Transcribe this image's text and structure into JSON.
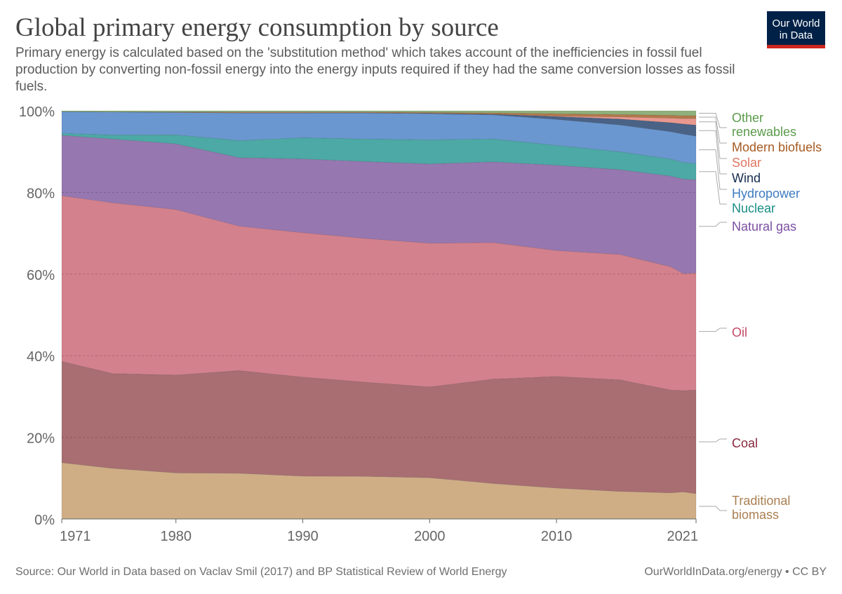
{
  "header": {
    "title": "Global primary energy consumption by source",
    "subtitle": "Primary energy is calculated based on the 'substitution method' which takes account of the inefficiencies in fossil fuel production by converting non-fossil energy into the energy inputs required if they had the same conversion losses as fossil fuels."
  },
  "logo": {
    "line1": "Our World",
    "line2": "in Data",
    "bg_color": "#002147",
    "accent_color": "#ce261e"
  },
  "footer": {
    "source": "Source: Our World in Data based on Vaclav Smil (2017) and BP Statistical Review of World Energy",
    "url": "OurWorldInData.org/energy • CC BY"
  },
  "chart_data": {
    "type": "area",
    "stacked": true,
    "relative": true,
    "x": [
      1971,
      1975,
      1980,
      1985,
      1990,
      1995,
      2000,
      2005,
      2010,
      2015,
      2019,
      2020,
      2021
    ],
    "x_ticks": [
      "1971",
      "1980",
      "1990",
      "2000",
      "2010",
      "2021"
    ],
    "y_ticks": [
      "0%",
      "20%",
      "40%",
      "60%",
      "80%",
      "100%"
    ],
    "ylim": [
      0,
      100
    ],
    "grid": true,
    "legend_placement": "right",
    "series": [
      {
        "name": "Traditional biomass",
        "color": "#cfae86",
        "label_color": "#a97f52",
        "values": [
          13.8,
          12.4,
          11.3,
          11.2,
          10.5,
          10.4,
          10.1,
          8.7,
          7.6,
          6.8,
          6.4,
          6.6,
          6.2
        ]
      },
      {
        "name": "Coal",
        "color": "#a86e72",
        "label_color": "#87283c",
        "values": [
          24.8,
          23.2,
          24.0,
          25.2,
          24.3,
          23.0,
          22.2,
          25.6,
          27.5,
          27.5,
          25.2,
          24.8,
          25.4
        ]
      },
      {
        "name": "Oil",
        "color": "#d3818d",
        "label_color": "#c24a66",
        "values": [
          40.6,
          41.8,
          40.6,
          35.4,
          35.4,
          35.1,
          35.2,
          33.5,
          31.0,
          30.9,
          30.2,
          28.6,
          28.7
        ]
      },
      {
        "name": "Natural gas",
        "color": "#9677b0",
        "label_color": "#7b4fa3",
        "values": [
          14.8,
          15.6,
          16.1,
          16.8,
          18.1,
          18.8,
          19.4,
          19.8,
          21.0,
          20.9,
          22.2,
          23.1,
          22.8
        ]
      },
      {
        "name": "Nuclear",
        "color": "#4ca9a5",
        "label_color": "#1a8e86",
        "values": [
          0.5,
          1.0,
          2.2,
          4.2,
          5.2,
          5.5,
          5.9,
          5.6,
          4.9,
          4.4,
          4.2,
          4.1,
          4.0
        ]
      },
      {
        "name": "Hydropower",
        "color": "#6a97d0",
        "label_color": "#3f7bc0",
        "values": [
          5.3,
          5.6,
          5.5,
          6.8,
          6.1,
          6.4,
          6.4,
          5.9,
          6.4,
          6.6,
          6.7,
          6.9,
          6.7
        ]
      },
      {
        "name": "Wind",
        "color": "#4a6285",
        "label_color": "#162c4e",
        "values": [
          0.0,
          0.0,
          0.0,
          0.0,
          0.0,
          0.0,
          0.1,
          0.2,
          0.7,
          1.5,
          2.2,
          2.5,
          2.7
        ]
      },
      {
        "name": "Solar",
        "color": "#e9988f",
        "label_color": "#e07560",
        "values": [
          0.0,
          0.0,
          0.0,
          0.0,
          0.0,
          0.0,
          0.0,
          0.0,
          0.1,
          0.5,
          1.1,
          1.3,
          1.6
        ]
      },
      {
        "name": "Modern biofuels",
        "color": "#b2794b",
        "label_color": "#a55a22",
        "values": [
          0.0,
          0.0,
          0.1,
          0.2,
          0.2,
          0.2,
          0.2,
          0.3,
          0.6,
          0.6,
          0.7,
          0.7,
          0.7
        ]
      },
      {
        "name": "Other renewables",
        "color": "#8fb07a",
        "label_color": "#5a9a4a",
        "values": [
          0.2,
          0.3,
          0.3,
          0.3,
          0.3,
          0.3,
          0.4,
          0.5,
          0.7,
          0.9,
          1.1,
          1.2,
          1.2
        ]
      }
    ]
  }
}
